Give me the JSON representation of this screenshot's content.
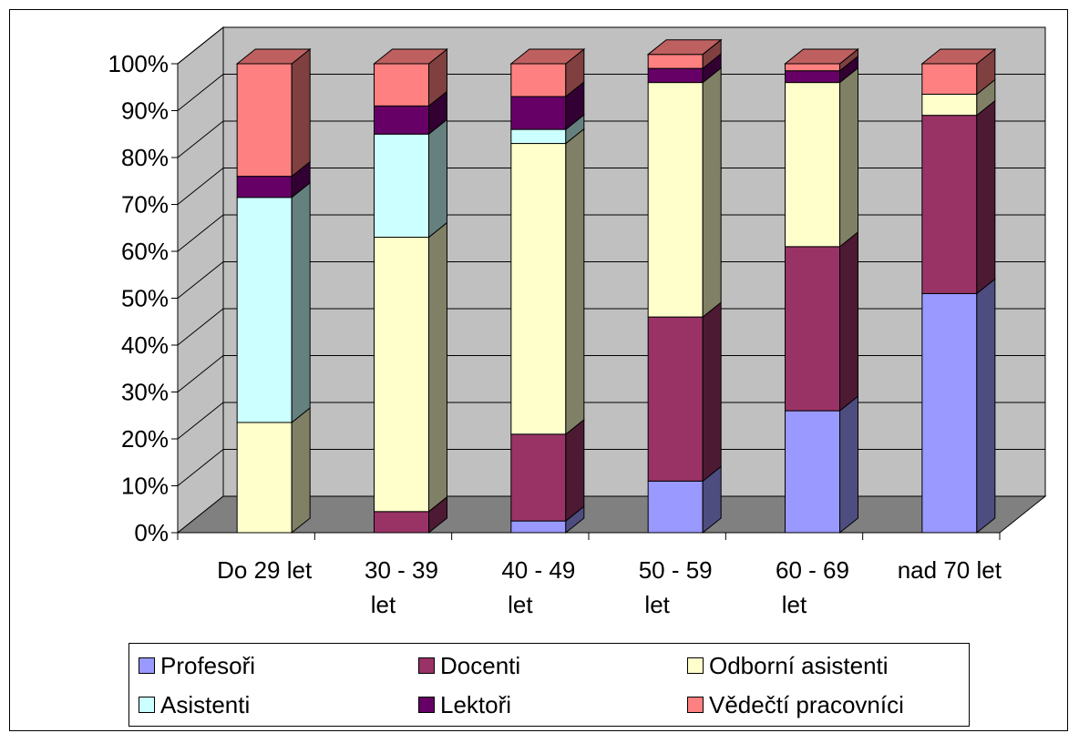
{
  "chart_data": {
    "type": "bar",
    "stacked": true,
    "percent": true,
    "view": "3d",
    "categories": [
      [
        "Do 29 let"
      ],
      [
        "30 - 39",
        "let"
      ],
      [
        "40 - 49",
        "let"
      ],
      [
        "50 - 59",
        "let"
      ],
      [
        "60 - 69",
        "let"
      ],
      [
        "nad 70 let"
      ]
    ],
    "yticks": [
      "0%",
      "10%",
      "20%",
      "30%",
      "40%",
      "50%",
      "60%",
      "70%",
      "80%",
      "90%",
      "100%"
    ],
    "ylim": [
      0,
      100
    ],
    "grid": true,
    "legend_position": "bottom",
    "series": [
      {
        "name": "Profesoři",
        "color": "#9999FF",
        "values": [
          0,
          0,
          2.5,
          11,
          26,
          51
        ]
      },
      {
        "name": "Docenti",
        "color": "#993366",
        "values": [
          0,
          4.5,
          18.5,
          35,
          35,
          38
        ]
      },
      {
        "name": "Odborní asistenti",
        "color": "#FFFFCC",
        "values": [
          23.5,
          58.5,
          62,
          50,
          35,
          4.5
        ]
      },
      {
        "name": "Asistenti",
        "color": "#CCFFFF",
        "values": [
          48,
          22,
          3,
          0,
          0,
          0
        ]
      },
      {
        "name": "Lektoři",
        "color": "#660066",
        "values": [
          4.5,
          6,
          7,
          3,
          2.5,
          0
        ]
      },
      {
        "name": "Vědečtí pracovníci",
        "color": "#FF8080",
        "values": [
          24,
          9,
          7,
          3,
          1.5,
          6.5
        ]
      }
    ],
    "colors": {
      "wall": "#C0C0C0",
      "floor": "#808080",
      "grid": "#000000"
    }
  },
  "legend_rows": [
    [
      {
        "label": "Profesoři",
        "color": "#9999FF"
      },
      {
        "label": "Docenti",
        "color": "#993366"
      },
      {
        "label": "Odborní asistenti",
        "color": "#FFFFCC"
      }
    ],
    [
      {
        "label": "Asistenti",
        "color": "#CCFFFF"
      },
      {
        "label": "Lektoři",
        "color": "#660066"
      },
      {
        "label": "Vědečtí pracovníci",
        "color": "#FF8080"
      }
    ]
  ]
}
